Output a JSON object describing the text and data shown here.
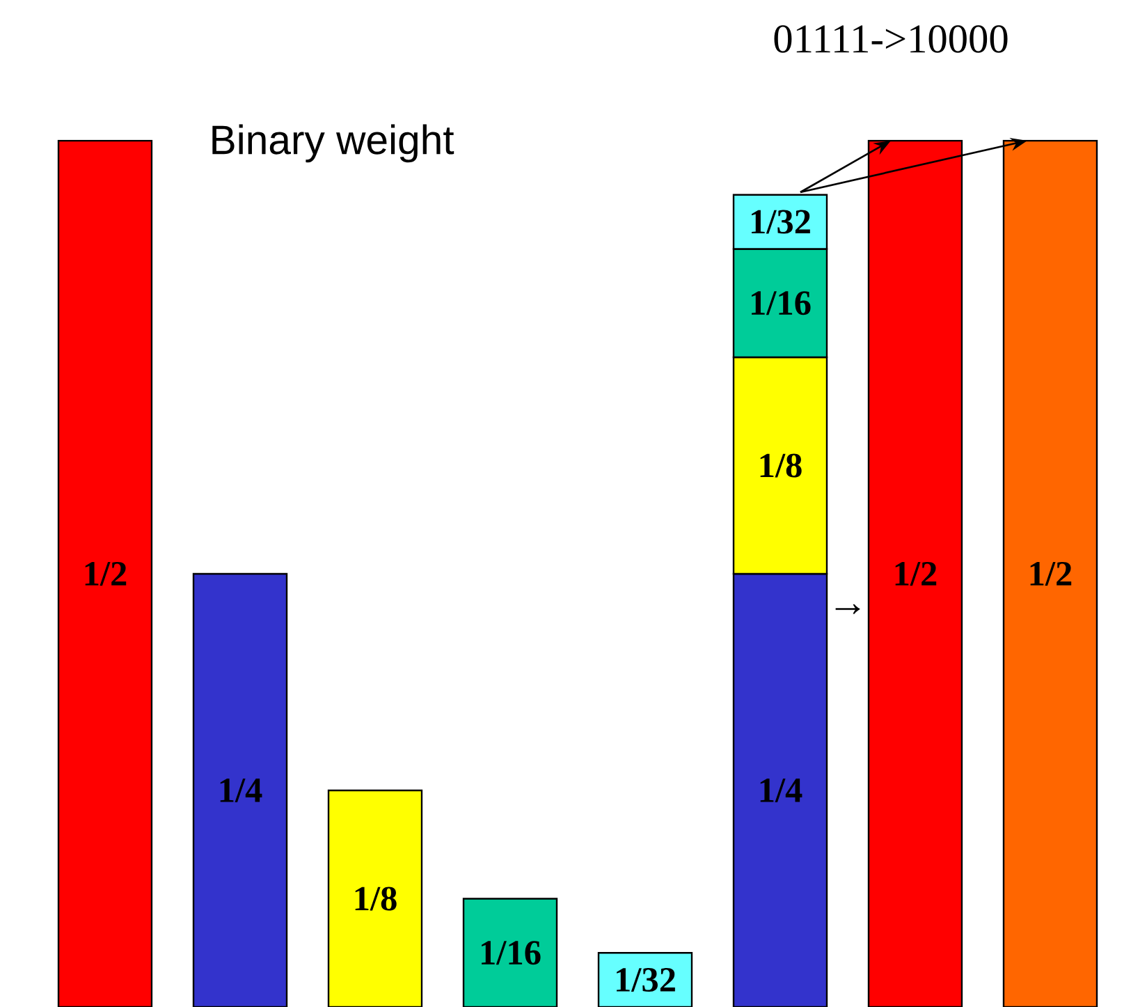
{
  "chart_data": {
    "type": "bar",
    "title": "01111->10000",
    "stacked": true,
    "categories": [
      null,
      null,
      null,
      null,
      null,
      null,
      null,
      null
    ],
    "series": [
      {
        "values": [
          0.5,
          0.25,
          0.125,
          0.0625,
          0.03125,
          0.25,
          0.5,
          0.5
        ],
        "colors": [
          "#ff0000",
          "#3333cc",
          "#ffff00",
          "#00cc99",
          "#66ffff",
          "#3333cc",
          "#ff0000",
          "#ff6600"
        ],
        "value_labels": [
          "1/2",
          "1/4",
          "1/8",
          "1/16",
          "1/32",
          "1/4",
          "1/2",
          "1/2"
        ]
      },
      {
        "values": [
          null,
          null,
          null,
          null,
          null,
          0.125,
          null,
          null
        ],
        "color": "#ffff00",
        "value_labels": [
          null,
          null,
          null,
          null,
          null,
          "1/8",
          null,
          null
        ]
      },
      {
        "values": [
          null,
          null,
          null,
          null,
          null,
          0.0625,
          null,
          null
        ],
        "color": "#00cc99",
        "value_labels": [
          null,
          null,
          null,
          null,
          null,
          "1/16",
          null,
          null
        ]
      },
      {
        "values": [
          null,
          null,
          null,
          null,
          null,
          0.03125,
          null,
          null
        ],
        "color": "#66ffff",
        "value_labels": [
          null,
          null,
          null,
          null,
          null,
          "1/32",
          null,
          null
        ]
      }
    ],
    "annotations": [
      "Binary weight",
      "→"
    ]
  }
}
